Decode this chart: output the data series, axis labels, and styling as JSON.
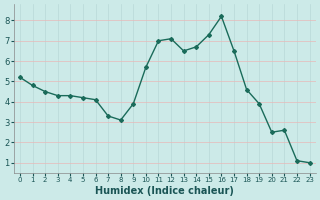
{
  "x": [
    0,
    1,
    2,
    3,
    4,
    5,
    6,
    7,
    8,
    9,
    10,
    11,
    12,
    13,
    14,
    15,
    16,
    17,
    18,
    19,
    20,
    21,
    22,
    23
  ],
  "y": [
    5.2,
    4.8,
    4.5,
    4.3,
    4.3,
    4.2,
    4.1,
    3.3,
    3.1,
    3.9,
    5.7,
    7.0,
    7.1,
    6.5,
    6.7,
    7.3,
    8.2,
    6.5,
    4.6,
    3.9,
    2.5,
    2.6,
    1.1,
    1.0
  ],
  "title": "",
  "xlabel": "Humidex (Indice chaleur)",
  "ylabel": "",
  "xlim": [
    -0.5,
    23.5
  ],
  "ylim": [
    0.5,
    8.8
  ],
  "yticks": [
    1,
    2,
    3,
    4,
    5,
    6,
    7,
    8
  ],
  "xticks": [
    0,
    1,
    2,
    3,
    4,
    5,
    6,
    7,
    8,
    9,
    10,
    11,
    12,
    13,
    14,
    15,
    16,
    17,
    18,
    19,
    20,
    21,
    22,
    23
  ],
  "line_color": "#1a6b5a",
  "marker_color": "#1a6b5a",
  "bg_color": "#cceae8",
  "grid_color_h": "#e8b8b8",
  "grid_color_v": "#b8d8d8",
  "xlabel_color": "#1a5555"
}
